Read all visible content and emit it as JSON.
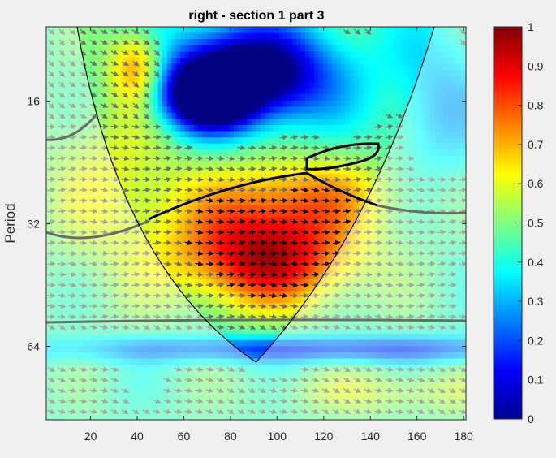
{
  "chart_data": {
    "type": "heatmap",
    "title": "right - section 1 part 3",
    "xlabel": "",
    "ylabel": "Period",
    "x_ticks": [
      "20",
      "40",
      "60",
      "80",
      "100",
      "120",
      "140",
      "160",
      "180"
    ],
    "x_tick_values": [
      20,
      40,
      60,
      80,
      100,
      120,
      140,
      160,
      180
    ],
    "xlim": [
      1,
      181
    ],
    "y_scale": "log2",
    "y_ticks": [
      "16",
      "32",
      "64"
    ],
    "y_tick_values": [
      16,
      32,
      64
    ],
    "ylim": [
      10.5,
      97
    ],
    "colorbar_ticks": [
      "0",
      "0.1",
      "0.2",
      "0.3",
      "0.4",
      "0.5",
      "0.6",
      "0.7",
      "0.8",
      "0.9",
      "1"
    ],
    "colorbar_values": [
      0,
      0.1,
      0.2,
      0.3,
      0.4,
      0.5,
      0.6,
      0.7,
      0.8,
      0.9,
      1
    ],
    "colormap": "jet",
    "cone_of_influence_apex": [
      91,
      70
    ],
    "grid": false
  }
}
